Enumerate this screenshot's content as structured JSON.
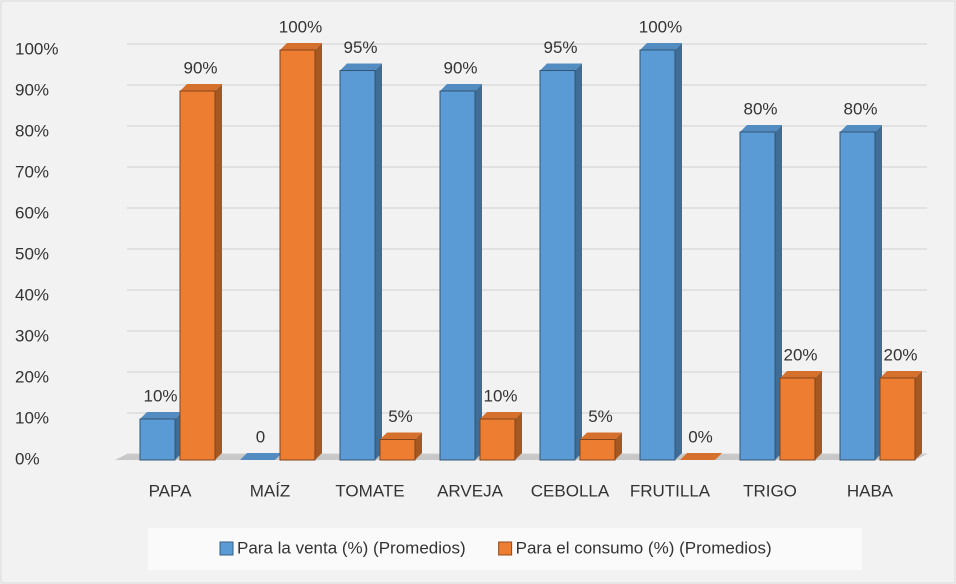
{
  "chart_data": {
    "type": "bar",
    "categories": [
      "PAPA",
      "MAÍZ",
      "TOMATE",
      "ARVEJA",
      "CEBOLLA",
      "FRUTILLA",
      "TRIGO",
      "HABA"
    ],
    "series": [
      {
        "name": "Para la venta (%) (Promedios)",
        "color": "#5b9bd5",
        "values": [
          10,
          0,
          95,
          90,
          95,
          100,
          80,
          80
        ],
        "value_labels": [
          "10%",
          "0",
          "95%",
          "90%",
          "95%",
          "100%",
          "80%",
          "80%"
        ]
      },
      {
        "name": "Para el consumo (%) (Promedios)",
        "color": "#ed7d31",
        "values": [
          90,
          100,
          5,
          10,
          5,
          0,
          20,
          20
        ],
        "value_labels": [
          "90%",
          "100%",
          "5%",
          "10%",
          "5%",
          "0%",
          "20%",
          "20%"
        ]
      }
    ],
    "ylim": [
      0,
      100
    ],
    "yticks": [
      {
        "value": 0,
        "label": "0%"
      },
      {
        "value": 10,
        "label": "10%"
      },
      {
        "value": 20,
        "label": "20%"
      },
      {
        "value": 30,
        "label": "30%"
      },
      {
        "value": 40,
        "label": "40%"
      },
      {
        "value": 50,
        "label": "50%"
      },
      {
        "value": 60,
        "label": "60%"
      },
      {
        "value": 70,
        "label": "70%"
      },
      {
        "value": 80,
        "label": "80%"
      },
      {
        "value": 90,
        "label": "90%"
      },
      {
        "value": 100,
        "label": "100%"
      }
    ],
    "grid": true,
    "legend": "bottom"
  }
}
